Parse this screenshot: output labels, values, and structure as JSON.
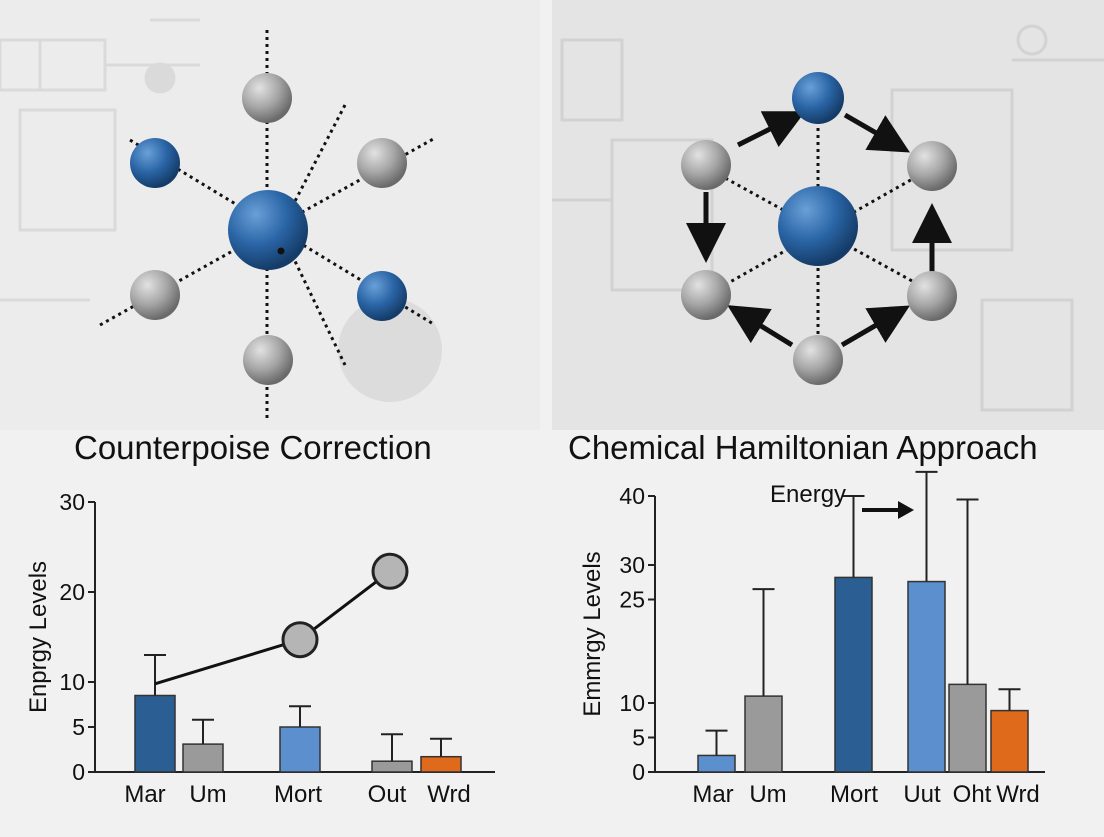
{
  "left": {
    "title": "Counterpoise Correction",
    "chart_data": {
      "type": "bar",
      "ylabel": "Enprgy Levels",
      "yticks": [
        {
          "label": "0",
          "value": 0
        },
        {
          "label": "5",
          "value": 5
        },
        {
          "label": "10",
          "value": 10
        },
        {
          "label": "20",
          "value": 20
        },
        {
          "label": "30",
          "value": 30
        }
      ],
      "ylim": [
        0,
        30
      ],
      "categories": [
        "Mar",
        "Um",
        "Mort",
        "Out",
        "Wrd"
      ],
      "bars": [
        {
          "value": 8.5,
          "err": 13,
          "color": "#2b5f94"
        },
        {
          "value": 3.1,
          "err": 5.8,
          "color": "#9a9a9a"
        },
        {
          "value": 5.0,
          "err": 7.3,
          "color": "#5b8fcd"
        },
        {
          "value": 1.2,
          "err": 4.2,
          "color": "#9a9a9a"
        },
        {
          "value": 1.7,
          "err": 3.7,
          "color": "#e06a1b"
        }
      ],
      "line_points": [
        {
          "value": 9.8,
          "marker": false
        },
        {
          "value": 14.7,
          "marker": true
        },
        {
          "value": 22.3,
          "marker": true
        }
      ]
    }
  },
  "right": {
    "title": "Chemical Hamiltonian Approach",
    "annotation": "Energy",
    "chart_data": {
      "type": "bar",
      "ylabel": "Emmrgy Levels",
      "yticks": [
        {
          "label": "0",
          "value": 0
        },
        {
          "label": "5",
          "value": 5
        },
        {
          "label": "10",
          "value": 10
        },
        {
          "label": "25",
          "value": 25
        },
        {
          "label": "30",
          "value": 30
        },
        {
          "label": "40",
          "value": 40
        }
      ],
      "ylim": [
        0,
        40
      ],
      "categories": [
        "Mar",
        "Um",
        "Mort",
        "Uut",
        "Oht",
        "Wrd"
      ],
      "bars": [
        {
          "value": 2.4,
          "err": 6,
          "color": "#5b8fcd"
        },
        {
          "value": 11,
          "err": 26.5,
          "color": "#9a9a9a"
        },
        {
          "value": 28.2,
          "err": 40,
          "color": "#2b5f94"
        },
        {
          "value": 27.6,
          "err": 43.5,
          "color": "#5b8fcd"
        },
        {
          "value": 12.7,
          "err": 39.5,
          "color": "#9a9a9a"
        },
        {
          "value": 8.9,
          "err": 12,
          "color": "#e06a1b"
        }
      ]
    }
  }
}
